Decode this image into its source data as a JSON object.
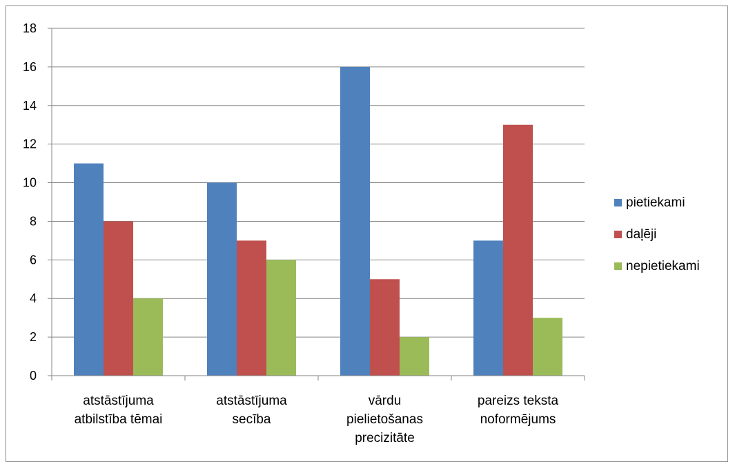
{
  "chart_data": {
    "type": "bar",
    "categories": [
      [
        "atstāstījuma",
        "atbilstība tēmai"
      ],
      [
        "atstāstījuma",
        "secība"
      ],
      [
        "vārdu",
        "pielietošanas",
        "precizitāte"
      ],
      [
        "pareizs teksta",
        "noformējums"
      ]
    ],
    "series": [
      {
        "name": "pietiekami",
        "values": [
          11,
          10,
          16,
          7
        ],
        "color": "#4F81BD"
      },
      {
        "name": "daļēji",
        "values": [
          8,
          7,
          5,
          13
        ],
        "color": "#C0504D"
      },
      {
        "name": "nepietiekami",
        "values": [
          4,
          6,
          2,
          3
        ],
        "color": "#9BBB59"
      }
    ],
    "yticks": [
      "0",
      "2",
      "4",
      "6",
      "8",
      "10",
      "12",
      "14",
      "16",
      "18"
    ],
    "ylim": [
      0,
      18
    ],
    "grid": true,
    "legend_position": "right",
    "colors": {
      "grid": "#868686",
      "axis": "#868686",
      "border": "#868686"
    }
  }
}
